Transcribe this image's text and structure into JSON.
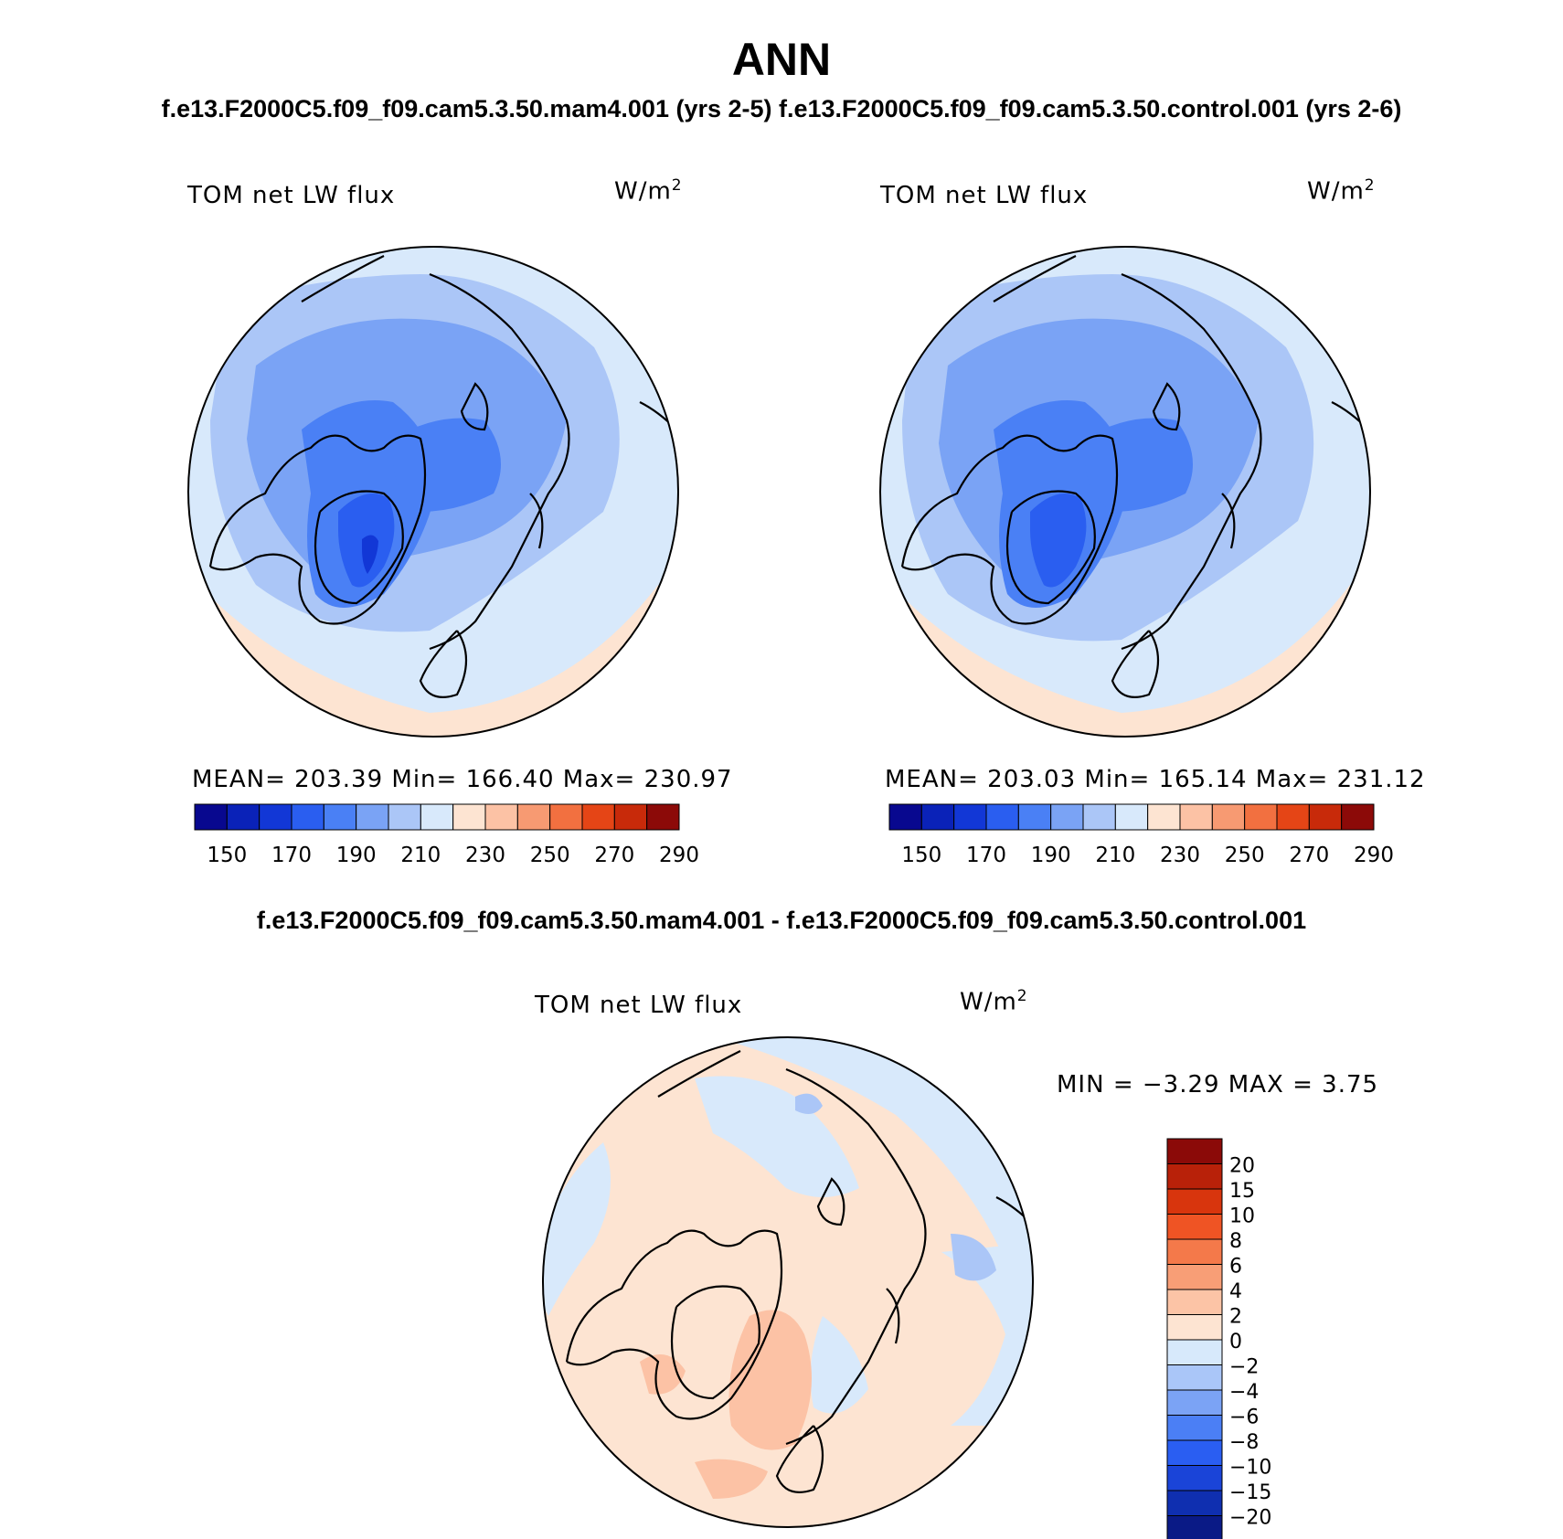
{
  "title": "ANN",
  "subtitle": "f.e13.F2000C5.f09_f09.cam5.3.50.mam4.001 (yrs 2-5) f.e13.F2000C5.f09_f09.cam5.3.50.control.001 (yrs 2-6)",
  "diff_title": "f.e13.F2000C5.f09_f09.cam5.3.50.mam4.001 - f.e13.F2000C5.f09_f09.cam5.3.50.control.001",
  "panels": [
    {
      "variable": "TOM net LW flux",
      "units_base": "W/m",
      "units_exp": "2",
      "stats": "MEAN= 203.39   Min= 166.40   Max= 230.97"
    },
    {
      "variable": "TOM net LW flux",
      "units_base": "W/m",
      "units_exp": "2",
      "stats": "MEAN= 203.03   Min= 165.14   Max= 231.12"
    },
    {
      "variable": "TOM net LW flux",
      "units_base": "W/m",
      "units_exp": "2",
      "stats": "MIN =   −3.29  MAX =    3.75"
    }
  ],
  "colors": {
    "abs_scale": [
      "#08088f",
      "#0a22b8",
      "#1237d6",
      "#2a5ef0",
      "#4a80f5",
      "#7aa3f5",
      "#abc6f7",
      "#d8e9fb",
      "#fde4d2",
      "#fcc2a5",
      "#f79a72",
      "#f27040",
      "#e54516",
      "#c82a0a",
      "#8c0a08"
    ],
    "diff_scale": [
      "#0a1a86",
      "#0f2fb0",
      "#1a44d8",
      "#2a5ef2",
      "#4b7ff5",
      "#7ba3f5",
      "#aac6f8",
      "#d7e9fb",
      "#fde4d2",
      "#fcc4a6",
      "#f89e76",
      "#f4794a",
      "#ef5424",
      "#d8350d",
      "#b82109",
      "#8b0a08"
    ]
  },
  "colorbar_abs": {
    "labels": [
      "150",
      "170",
      "190",
      "210",
      "230",
      "250",
      "270",
      "290"
    ]
  },
  "colorbar_diff": {
    "labels": [
      "−20",
      "−15",
      "−10",
      "−8",
      "−6",
      "−4",
      "−2",
      "0",
      "2",
      "4",
      "6",
      "8",
      "10",
      "15",
      "20"
    ]
  }
}
